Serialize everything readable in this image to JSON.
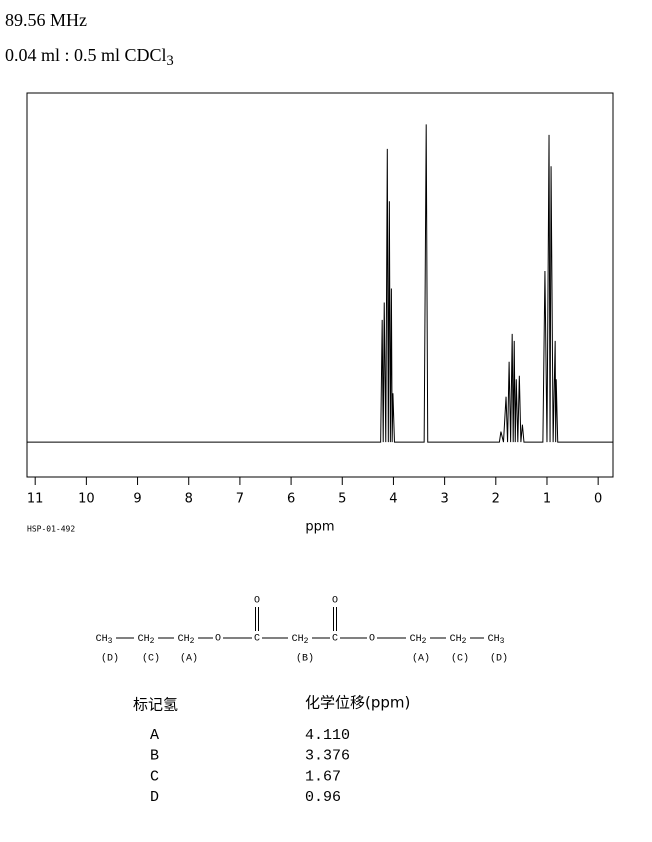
{
  "header": {
    "frequency": "89.56 MHz",
    "sample": "0.04 ml : 0.5 ml CDCl3"
  },
  "chart_data": {
    "type": "line",
    "color": "#000000",
    "x": [
      11.16,
      4.25,
      4.22,
      4.2,
      4.18,
      4.15,
      4.12,
      4.1,
      4.08,
      4.06,
      4.04,
      4.025,
      4.01,
      3.98,
      3.4,
      3.36,
      3.33,
      1.93,
      1.9,
      1.85,
      1.8,
      1.77,
      1.74,
      1.71,
      1.68,
      1.66,
      1.64,
      1.62,
      1.6,
      1.57,
      1.54,
      1.51,
      1.48,
      1.45,
      1.08,
      1.04,
      1.0,
      0.96,
      0.94,
      0.92,
      0.88,
      0.84,
      0.83,
      0.82,
      0.79,
      -0.29
    ],
    "values": [
      0,
      0,
      0.35,
      0,
      0.4,
      0,
      0.84,
      0,
      0.69,
      0,
      0.44,
      0,
      0.14,
      0,
      0,
      0.91,
      0,
      0,
      0.03,
      0,
      0.13,
      0,
      0.23,
      0,
      0.31,
      0,
      0.29,
      0,
      0.18,
      0,
      0.19,
      0,
      0.05,
      0,
      0,
      0.49,
      0,
      0.88,
      0,
      0.79,
      0,
      0.29,
      0,
      0.18,
      0,
      0
    ],
    "xlim": [
      11.16,
      -0.29
    ],
    "ylim": [
      -0.1,
      1.0
    ],
    "xticks": [
      11,
      10,
      9,
      8,
      7,
      6,
      5,
      4,
      3,
      2,
      1,
      0
    ],
    "xlabel": "ppm",
    "note": "HSP-01-492"
  },
  "structure": {
    "groups": [
      "CH3",
      "CH2",
      "CH2",
      "O",
      "C",
      "CH2",
      "C",
      "O",
      "CH2",
      "CH2",
      "CH3"
    ],
    "carbonyl_oxygens": [
      "O",
      "O"
    ],
    "labels": [
      "(D)",
      "(C)",
      "(A)",
      "(B)",
      "(A)",
      "(C)",
      "(D)"
    ]
  },
  "table": {
    "header": [
      "标记氢",
      "化学位移(ppm)"
    ],
    "rows": [
      [
        "A",
        "4.110"
      ],
      [
        "B",
        "3.376"
      ],
      [
        "C",
        "1.67"
      ],
      [
        "D",
        "0.96"
      ]
    ]
  }
}
